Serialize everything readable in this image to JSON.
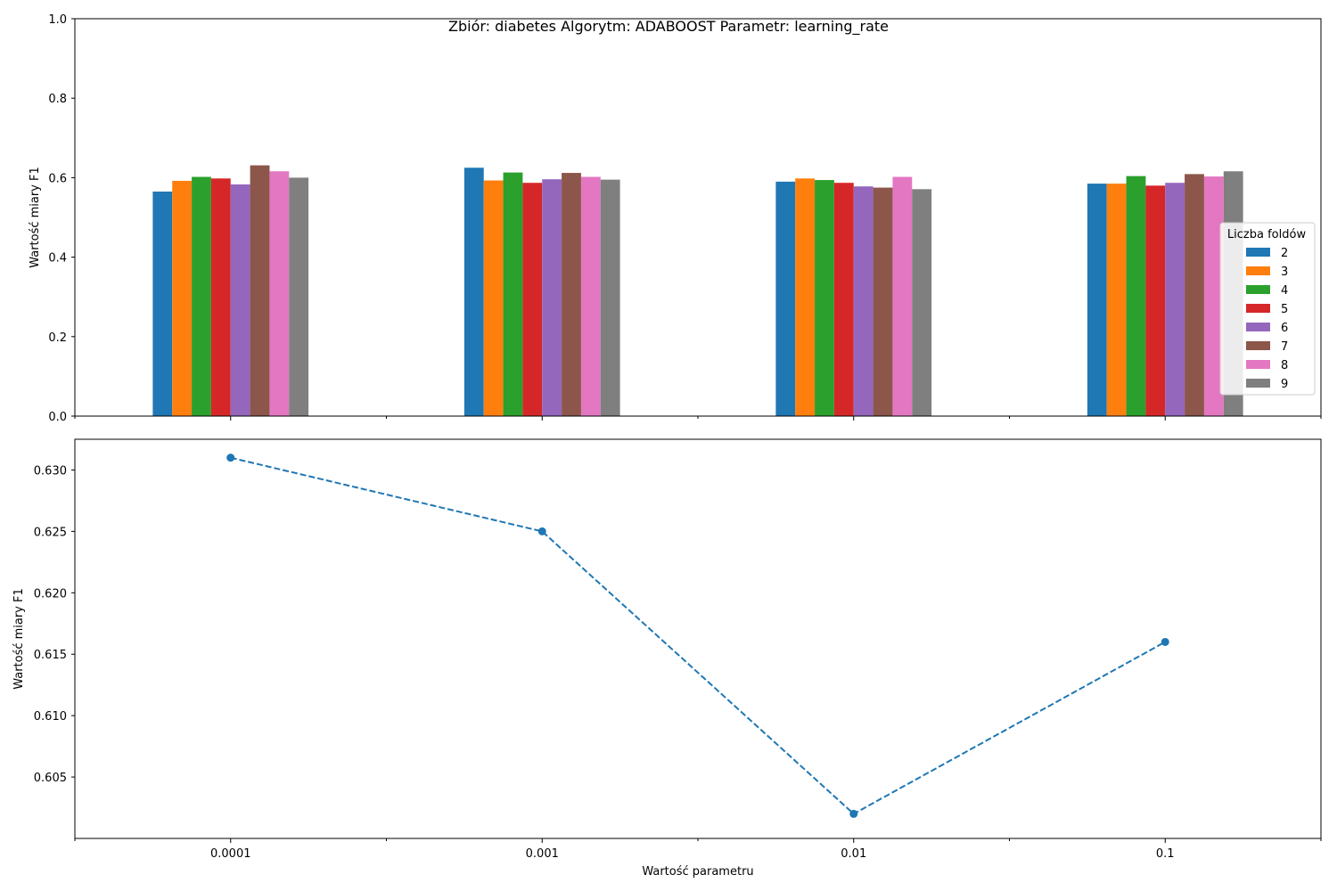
{
  "figure": {
    "suptitle": "Zbiór: diabetes Algorytm: ADABOOST Parametr: learning_rate"
  },
  "chart_data": [
    {
      "type": "bar",
      "title": "",
      "xlabel": "",
      "ylabel": "Wartość miary F1",
      "categories": [
        "0.0001",
        "0.001",
        "0.01",
        "0.1"
      ],
      "ylim": [
        0,
        1.0
      ],
      "yticks": [
        "0.0",
        "0.2",
        "0.4",
        "0.6",
        "0.8",
        "1.0"
      ],
      "grid": false,
      "legend": {
        "title": "Liczba foldów",
        "placement": "right"
      },
      "series": [
        {
          "name": "2",
          "color": "#1f77b4",
          "values": [
            0.565,
            0.625,
            0.59,
            0.585
          ]
        },
        {
          "name": "3",
          "color": "#ff7f0e",
          "values": [
            0.592,
            0.593,
            0.598,
            0.585
          ]
        },
        {
          "name": "4",
          "color": "#2ca02c",
          "values": [
            0.602,
            0.613,
            0.594,
            0.604
          ]
        },
        {
          "name": "5",
          "color": "#d62728",
          "values": [
            0.598,
            0.587,
            0.587,
            0.58
          ]
        },
        {
          "name": "6",
          "color": "#9467bd",
          "values": [
            0.583,
            0.596,
            0.578,
            0.587
          ]
        },
        {
          "name": "7",
          "color": "#8c564b",
          "values": [
            0.631,
            0.612,
            0.575,
            0.609
          ]
        },
        {
          "name": "8",
          "color": "#e377c2",
          "values": [
            0.616,
            0.602,
            0.602,
            0.603
          ]
        },
        {
          "name": "9",
          "color": "#7f7f7f",
          "values": [
            0.6,
            0.595,
            0.571,
            0.616
          ]
        }
      ]
    },
    {
      "type": "line",
      "title": "",
      "xlabel": "Wartość parametru",
      "ylabel": "Wartość miary F1",
      "categories": [
        "0.0001",
        "0.001",
        "0.01",
        "0.1"
      ],
      "values": [
        0.631,
        0.625,
        0.602,
        0.616
      ],
      "ylim": [
        0.6,
        0.6325
      ],
      "yticks": [
        "0.605",
        "0.610",
        "0.615",
        "0.620",
        "0.625",
        "0.630"
      ],
      "grid": false,
      "line_style": "dashed",
      "marker": "circle",
      "color": "#1f77b4"
    }
  ]
}
